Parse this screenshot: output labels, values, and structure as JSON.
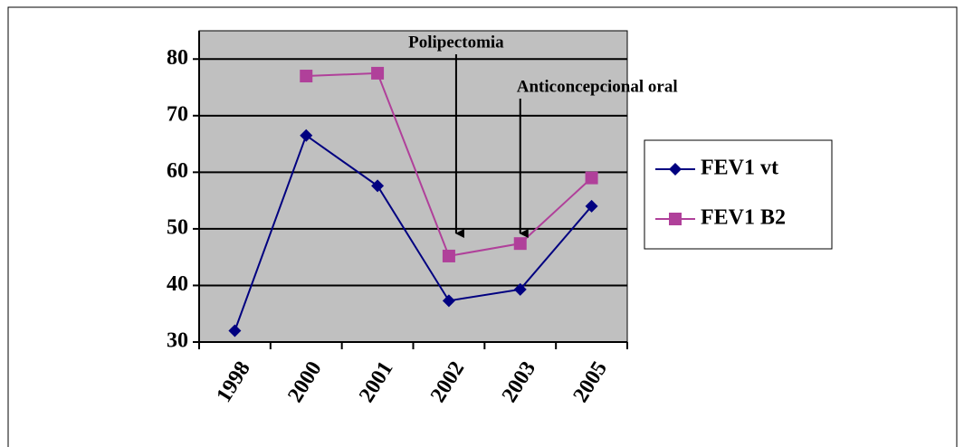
{
  "chart_data": {
    "type": "line",
    "categories": [
      "1998",
      "2000",
      "2001",
      "2002",
      "2003",
      "2005"
    ],
    "series": [
      {
        "name": "FEV1 vt",
        "color": "#000080",
        "marker": "diamond",
        "values": [
          32,
          66.5,
          57.6,
          37.3,
          39.3,
          54
        ]
      },
      {
        "name": "FEV1 B2",
        "color": "#b0409a",
        "marker": "square",
        "values": [
          null,
          77,
          77.5,
          45.2,
          47.4,
          59
        ]
      }
    ],
    "annotations": [
      {
        "text": "Polipectomia",
        "category": "2002"
      },
      {
        "text": "Anticoncepcional oral",
        "category": "2003"
      }
    ],
    "ylim": [
      30,
      85
    ],
    "yticks": [
      30,
      40,
      50,
      60,
      70,
      80
    ],
    "grid": true,
    "legend": "right",
    "plot_background": "#c0c0c0"
  }
}
